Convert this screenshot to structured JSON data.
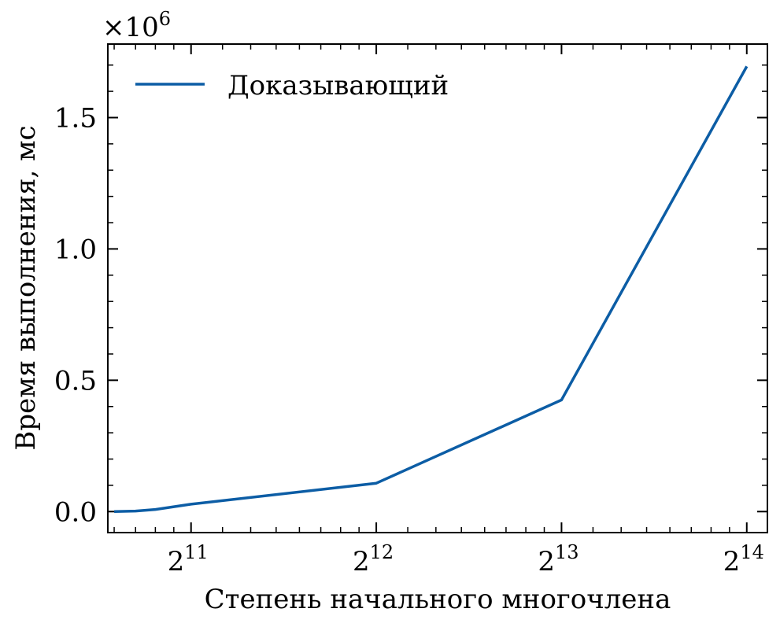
{
  "chart_data": {
    "type": "line",
    "xlabel": "Степень начального многочлена",
    "ylabel": "Время выполнения, мс",
    "y_multiplier_base": "×10",
    "y_multiplier_exp": "6",
    "x_scale": "log2",
    "xlim": [
      1500,
      17700
    ],
    "ylim": [
      -0.08,
      1.78
    ],
    "x_ticks": [
      {
        "value": 2048,
        "base": "2",
        "exp": "11"
      },
      {
        "value": 4096,
        "base": "2",
        "exp": "12"
      },
      {
        "value": 8192,
        "base": "2",
        "exp": "13"
      },
      {
        "value": 16384,
        "base": "2",
        "exp": "14"
      }
    ],
    "y_ticks": [
      {
        "value": 0.0,
        "label": "0.0"
      },
      {
        "value": 0.5,
        "label": "0.5"
      },
      {
        "value": 1.0,
        "label": "1.0"
      },
      {
        "value": 1.5,
        "label": "1.5"
      }
    ],
    "legend_position": "top-left",
    "grid": false,
    "series": [
      {
        "name": "Доказывающий",
        "color": "#0C5DA5",
        "x": [
          1536,
          1664,
          1792,
          2048,
          4096,
          8192,
          16384
        ],
        "y": [
          0.0,
          0.002,
          0.008,
          0.028,
          0.108,
          0.425,
          1.695
        ]
      }
    ]
  }
}
